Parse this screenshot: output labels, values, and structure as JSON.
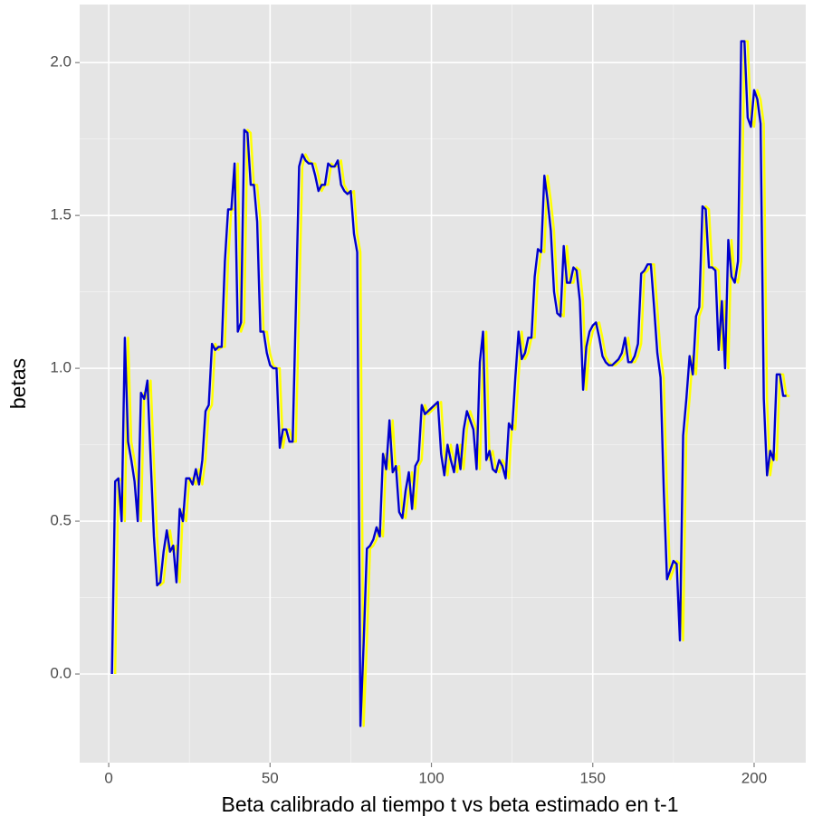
{
  "chart_data": {
    "type": "line",
    "xlabel": "Beta calibrado al tiempo t vs beta estimado en t-1",
    "ylabel": "betas",
    "x": [
      1,
      2,
      3,
      4,
      5,
      6,
      7,
      8,
      9,
      10,
      11,
      12,
      13,
      14,
      15,
      16,
      17,
      18,
      19,
      20,
      21,
      22,
      23,
      24,
      25,
      26,
      27,
      28,
      29,
      30,
      31,
      32,
      33,
      34,
      35,
      36,
      37,
      38,
      39,
      40,
      41,
      42,
      43,
      44,
      45,
      46,
      47,
      48,
      49,
      50,
      51,
      52,
      53,
      54,
      55,
      56,
      57,
      58,
      59,
      60,
      61,
      62,
      63,
      64,
      65,
      66,
      67,
      68,
      69,
      70,
      71,
      72,
      73,
      74,
      75,
      76,
      77,
      78,
      79,
      80,
      81,
      82,
      83,
      84,
      85,
      86,
      87,
      88,
      89,
      90,
      91,
      92,
      93,
      94,
      95,
      96,
      97,
      98,
      99,
      100,
      101,
      102,
      103,
      104,
      105,
      106,
      107,
      108,
      109,
      110,
      111,
      112,
      113,
      114,
      115,
      116,
      117,
      118,
      119,
      120,
      121,
      122,
      123,
      124,
      125,
      126,
      127,
      128,
      129,
      130,
      131,
      132,
      133,
      134,
      135,
      136,
      137,
      138,
      139,
      140,
      141,
      142,
      143,
      144,
      145,
      146,
      147,
      148,
      149,
      150,
      151,
      152,
      153,
      154,
      155,
      156,
      157,
      158,
      159,
      160,
      161,
      162,
      163,
      164,
      165,
      166,
      167,
      168,
      169,
      170,
      171,
      172,
      173,
      174,
      175,
      176,
      177,
      178,
      179,
      180,
      181,
      182,
      183,
      184,
      185,
      186,
      187,
      188,
      189,
      190,
      191,
      192,
      193,
      194,
      195,
      196,
      197,
      198,
      199,
      200,
      201,
      202,
      203,
      204,
      205,
      206,
      207,
      208,
      209,
      210,
      211
    ],
    "series": [
      {
        "color": "#ffff00",
        "values": [
          null,
          0,
          0.63,
          0.64,
          0.5,
          1.1,
          0.76,
          0.7,
          0.63,
          0.5,
          0.92,
          0.9,
          0.96,
          0.7,
          0.45,
          0.29,
          0.3,
          0.4,
          0.47,
          0.4,
          0.42,
          0.3,
          0.54,
          0.5,
          0.64,
          0.64,
          0.62,
          0.67,
          0.62,
          0.7,
          0.86,
          0.88,
          1.08,
          1.06,
          1.07,
          1.07,
          1.35,
          1.52,
          1.52,
          1.67,
          1.12,
          1.15,
          1.78,
          1.77,
          1.6,
          1.6,
          1.48,
          1.12,
          1.12,
          1.05,
          1.01,
          1,
          1,
          0.74,
          0.8,
          0.8,
          0.76,
          0.76,
          1.2,
          1.66,
          1.7,
          1.68,
          1.67,
          1.67,
          1.63,
          1.58,
          1.6,
          1.6,
          1.67,
          1.66,
          1.66,
          1.68,
          1.6,
          1.58,
          1.57,
          1.58,
          1.44,
          1.38,
          -0.17,
          0.1,
          0.41,
          0.42,
          0.44,
          0.48,
          0.45,
          0.72,
          0.67,
          0.83,
          0.66,
          0.68,
          0.53,
          0.51,
          0.6,
          0.66,
          0.54,
          0.68,
          0.7,
          0.88,
          0.85,
          0.86,
          0.87,
          0.88,
          0.89,
          0.72,
          0.65,
          0.75,
          0.7,
          0.66,
          0.75,
          0.67,
          0.8,
          0.86,
          0.83,
          0.8,
          0.67,
          1.02,
          1.12,
          0.7,
          0.73,
          0.67,
          0.66,
          0.7,
          0.68,
          0.64,
          0.82,
          0.8,
          0.97,
          1.12,
          1.03,
          1.05,
          1.1,
          1.1,
          1.3,
          1.39,
          1.38,
          1.63,
          1.55,
          1.45,
          1.25,
          1.18,
          1.17,
          1.4,
          1.28,
          1.28,
          1.33,
          1.32,
          1.22,
          0.93,
          1.07,
          1.12,
          1.14,
          1.15,
          1.1,
          1.04,
          1.02,
          1.01,
          1.01,
          1.02,
          1.03,
          1.05,
          1.1,
          1.02,
          1.02,
          1.04,
          1.08,
          1.31,
          1.32,
          1.34,
          1.34,
          1.2,
          1.05,
          0.97,
          0.6,
          0.31,
          0.34,
          0.37,
          0.36,
          0.11,
          0.78,
          0.9,
          1.04,
          0.98,
          1.17,
          1.2,
          1.53,
          1.52,
          1.33,
          1.33,
          1.32,
          1.06,
          1.22,
          1,
          1.42,
          1.3,
          1.28,
          1.35,
          2.07,
          2.07,
          1.82,
          1.79,
          1.91,
          1.88,
          1.8,
          0.9,
          0.65,
          0.73,
          0.7,
          0.98,
          0.98,
          0.91,
          0.91
        ]
      },
      {
        "color": "#0000cc",
        "values": [
          0,
          0.63,
          0.64,
          0.5,
          1.1,
          0.76,
          0.7,
          0.63,
          0.5,
          0.92,
          0.9,
          0.96,
          0.7,
          0.45,
          0.29,
          0.3,
          0.4,
          0.47,
          0.4,
          0.42,
          0.3,
          0.54,
          0.5,
          0.64,
          0.64,
          0.62,
          0.67,
          0.62,
          0.7,
          0.86,
          0.88,
          1.08,
          1.06,
          1.07,
          1.07,
          1.35,
          1.52,
          1.52,
          1.67,
          1.12,
          1.15,
          1.78,
          1.77,
          1.6,
          1.6,
          1.48,
          1.12,
          1.12,
          1.05,
          1.01,
          1,
          1,
          0.74,
          0.8,
          0.8,
          0.76,
          0.76,
          1.2,
          1.66,
          1.7,
          1.68,
          1.67,
          1.67,
          1.63,
          1.58,
          1.6,
          1.6,
          1.67,
          1.66,
          1.66,
          1.68,
          1.6,
          1.58,
          1.57,
          1.58,
          1.44,
          1.38,
          -0.17,
          0.1,
          0.41,
          0.42,
          0.44,
          0.48,
          0.45,
          0.72,
          0.67,
          0.83,
          0.66,
          0.68,
          0.53,
          0.51,
          0.6,
          0.66,
          0.54,
          0.68,
          0.7,
          0.88,
          0.85,
          0.86,
          0.87,
          0.88,
          0.89,
          0.72,
          0.65,
          0.75,
          0.7,
          0.66,
          0.75,
          0.67,
          0.8,
          0.86,
          0.83,
          0.8,
          0.67,
          1.02,
          1.12,
          0.7,
          0.73,
          0.67,
          0.66,
          0.7,
          0.68,
          0.64,
          0.82,
          0.8,
          0.97,
          1.12,
          1.03,
          1.05,
          1.1,
          1.1,
          1.3,
          1.39,
          1.38,
          1.63,
          1.55,
          1.45,
          1.25,
          1.18,
          1.17,
          1.4,
          1.28,
          1.28,
          1.33,
          1.32,
          1.22,
          0.93,
          1.07,
          1.12,
          1.14,
          1.15,
          1.1,
          1.04,
          1.02,
          1.01,
          1.01,
          1.02,
          1.03,
          1.05,
          1.1,
          1.02,
          1.02,
          1.04,
          1.08,
          1.31,
          1.32,
          1.34,
          1.34,
          1.2,
          1.05,
          0.97,
          0.6,
          0.31,
          0.34,
          0.37,
          0.36,
          0.11,
          0.78,
          0.9,
          1.04,
          0.98,
          1.17,
          1.2,
          1.53,
          1.52,
          1.33,
          1.33,
          1.32,
          1.06,
          1.22,
          1,
          1.42,
          1.3,
          1.28,
          1.35,
          2.07,
          2.07,
          1.82,
          1.79,
          1.91,
          1.88,
          1.8,
          0.9,
          0.65,
          0.73,
          0.7,
          0.98,
          0.98,
          0.91,
          0.91,
          null
        ]
      }
    ],
    "xlim": [
      -9,
      216
    ],
    "ylim": [
      -0.29,
      2.19
    ],
    "xticks": [
      0,
      50,
      100,
      150,
      200
    ],
    "yticks": [
      {
        "value": 0,
        "label": "0.0"
      },
      0.5,
      {
        "value": 1,
        "label": "1.0"
      },
      1.5,
      {
        "value": 2,
        "label": "2.0"
      }
    ],
    "grid": true,
    "background": "#e5e5e5",
    "grid_color": "#ffffff"
  }
}
